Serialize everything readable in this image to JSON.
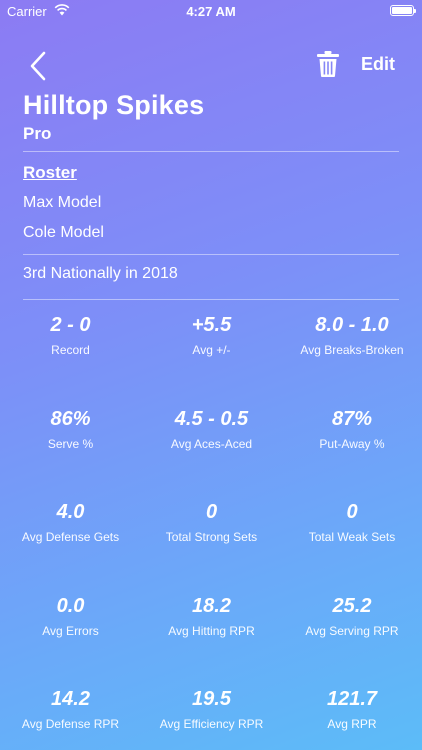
{
  "status_bar": {
    "carrier": "Carrier",
    "time": "4:27 AM",
    "wifi_icon": "wifi-icon",
    "battery_icon": "battery-icon"
  },
  "nav": {
    "back_icon": "chevron-left-icon",
    "trash_icon": "trash-icon",
    "edit_label": "Edit"
  },
  "team": {
    "name": "Hilltop Spikes",
    "level": "Pro"
  },
  "roster": {
    "title": "Roster",
    "players": [
      "Max Model",
      "Cole Model"
    ]
  },
  "ranking": "3rd Nationally in 2018",
  "stats": [
    {
      "value": "2 - 0",
      "label": "Record"
    },
    {
      "value": "+5.5",
      "label": "Avg +/-"
    },
    {
      "value": "8.0 - 1.0",
      "label": "Avg Breaks-Broken"
    },
    {
      "value": "86%",
      "label": "Serve %"
    },
    {
      "value": "4.5 - 0.5",
      "label": "Avg Aces-Aced"
    },
    {
      "value": "87%",
      "label": "Put-Away %"
    },
    {
      "value": "4.0",
      "label": "Avg Defense Gets"
    },
    {
      "value": "0",
      "label": "Total Strong Sets"
    },
    {
      "value": "0",
      "label": "Total Weak Sets"
    },
    {
      "value": "0.0",
      "label": "Avg Errors"
    },
    {
      "value": "18.2",
      "label": "Avg Hitting RPR"
    },
    {
      "value": "25.2",
      "label": "Avg Serving RPR"
    },
    {
      "value": "14.2",
      "label": "Avg Defense RPR"
    },
    {
      "value": "19.5",
      "label": "Avg Efficiency RPR"
    },
    {
      "value": "121.7",
      "label": "Avg RPR"
    }
  ],
  "colors": {
    "gradient_start": "#8c7bf3",
    "gradient_end": "#5cbcf8",
    "text": "#ffffff"
  }
}
